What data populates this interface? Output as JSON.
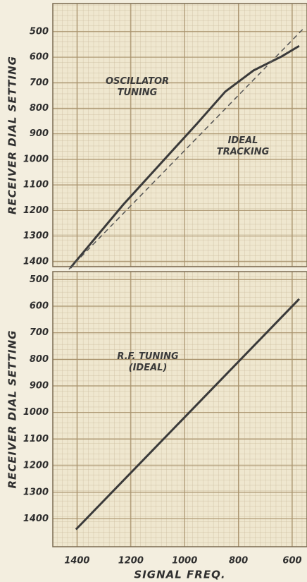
{
  "chart_data": [
    {
      "type": "line",
      "y_label": "RECEIVER DIAL SETTING",
      "xlim": [
        1490,
        545
      ],
      "ylim": [
        1420,
        390
      ],
      "yticks": [
        500,
        600,
        700,
        800,
        900,
        1000,
        1100,
        1200,
        1300,
        1400
      ],
      "grid": true,
      "series": [
        {
          "name": "OSCILLATOR TUNING",
          "color": "#3a3a3a",
          "style": "solid",
          "x": [
            1425,
            1228,
            953,
            849,
            744,
            639,
            574
          ],
          "values": [
            1425,
            1177,
            859,
            735,
            652,
            597,
            556
          ]
        },
        {
          "name": "IDEAL TRACKING",
          "color": "#555555",
          "style": "dashed",
          "x": [
            1430,
            560
          ],
          "values": [
            1430,
            490
          ]
        }
      ]
    },
    {
      "type": "line",
      "x_label": "SIGNAL FREQ.",
      "y_label": "RECEIVER DIAL SETTING",
      "xlim": [
        1490,
        545
      ],
      "ylim": [
        1505,
        470
      ],
      "xticks": [
        1400,
        1200,
        1000,
        800,
        600
      ],
      "yticks": [
        500,
        600,
        700,
        800,
        900,
        1000,
        1100,
        1200,
        1300,
        1400
      ],
      "grid": true,
      "series": [
        {
          "name": "R.F. TUNING (IDEAL)",
          "color": "#3a3a3a",
          "style": "solid",
          "x": [
            1404,
            574
          ],
          "values": [
            1440,
            573
          ]
        }
      ]
    }
  ]
}
